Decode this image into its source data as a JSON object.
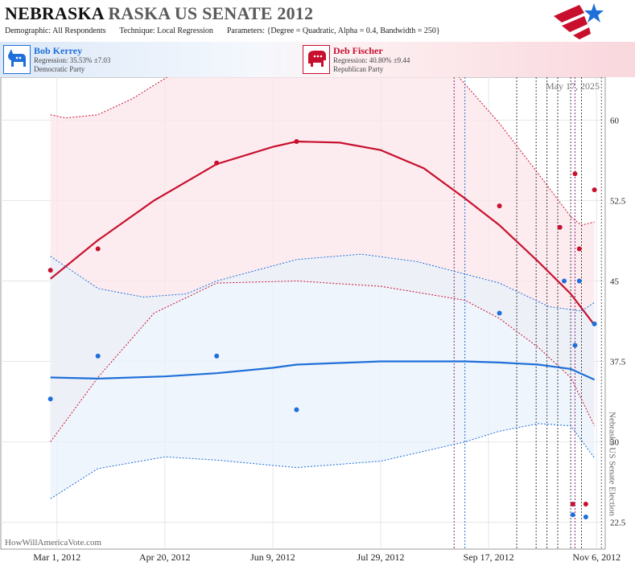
{
  "header": {
    "title_state": "NEBRASKA",
    "title_race": "RASKA US SENATE 2012",
    "demographic_label": "Demographic:",
    "demographic_value": "All Respondents",
    "technique_label": "Technique:",
    "technique_value": "Local Regression",
    "parameters_label": "Parameters:",
    "parameters_value": "{Degree = Quadratic, Alpha = 0.4, Bandwidth = 250}"
  },
  "candidates": [
    {
      "name": "Bob Kerrey",
      "regression": "Regression: 35.53% ±7.03",
      "party": "Democratic Party",
      "icon": "donkey-icon",
      "color": "#1e6fd9"
    },
    {
      "name": "Deb Fischer",
      "regression": "Regression: 40.80% ±9.44",
      "party": "Republican Party",
      "icon": "elephant-icon",
      "color": "#c8102e"
    }
  ],
  "chart_data": {
    "type": "scatter",
    "date_label": "May 17, 2025",
    "watermark": "HowWillAmericaVote.com",
    "election_label": "Nebraska US Senate Election",
    "x_range": [
      "2012-02-04",
      "2012-11-10"
    ],
    "ylim": [
      20,
      64
    ],
    "y_ticks": [
      22.5,
      30,
      37.5,
      45,
      52.5,
      60
    ],
    "y_tick_labels": [
      "22.5",
      "30",
      "37.5",
      "45",
      "52.5",
      "60"
    ],
    "x_ticks": [
      {
        "date": "2012-03-01",
        "label": "Mar 1, 2012"
      },
      {
        "date": "2012-04-20",
        "label": "Apr 20, 2012"
      },
      {
        "date": "2012-06-09",
        "label": "Jun 9, 2012"
      },
      {
        "date": "2012-07-29",
        "label": "Jul 29, 2012"
      },
      {
        "date": "2012-09-17",
        "label": "Sep 17, 2012"
      },
      {
        "date": "2012-11-06",
        "label": "Nov 6, 2012"
      }
    ],
    "election_date": "2012-11-06",
    "poll_lines": [
      {
        "date": "2012-09-01",
        "color": "#8a2a7a"
      },
      {
        "date": "2012-09-06",
        "color": "#2a6fd0"
      },
      {
        "date": "2012-09-30",
        "color": "#444444"
      },
      {
        "date": "2012-10-09",
        "color": "#444444"
      },
      {
        "date": "2012-10-14",
        "color": "#444444"
      },
      {
        "date": "2012-10-19",
        "color": "#444444"
      },
      {
        "date": "2012-10-25",
        "color": "#444444"
      },
      {
        "date": "2012-10-27",
        "color": "#8a2a7a"
      },
      {
        "date": "2012-10-30",
        "color": "#444444"
      }
    ],
    "series": [
      {
        "name": "Deb Fischer",
        "color": "#c8102e",
        "fill": "#fbe6ea",
        "points": [
          {
            "x": "2012-02-27",
            "y": 46
          },
          {
            "x": "2012-03-20",
            "y": 48
          },
          {
            "x": "2012-05-14",
            "y": 56
          },
          {
            "x": "2012-06-20",
            "y": 58
          },
          {
            "x": "2012-09-22",
            "y": 52
          },
          {
            "x": "2012-10-20",
            "y": 50
          },
          {
            "x": "2012-10-27",
            "y": 55
          },
          {
            "x": "2012-10-29",
            "y": 48
          },
          {
            "x": "2012-11-05",
            "y": 53.5
          },
          {
            "x": "2012-10-26",
            "y": 24.2
          },
          {
            "x": "2012-11-01",
            "y": 24.2
          }
        ],
        "regression": [
          {
            "x": "2012-02-27",
            "y": 45.2
          },
          {
            "x": "2012-03-20",
            "y": 48.8
          },
          {
            "x": "2012-04-15",
            "y": 52.5
          },
          {
            "x": "2012-05-14",
            "y": 55.9
          },
          {
            "x": "2012-06-09",
            "y": 57.5
          },
          {
            "x": "2012-06-20",
            "y": 58
          },
          {
            "x": "2012-07-10",
            "y": 57.9
          },
          {
            "x": "2012-07-29",
            "y": 57.2
          },
          {
            "x": "2012-08-18",
            "y": 55.5
          },
          {
            "x": "2012-09-06",
            "y": 52.7
          },
          {
            "x": "2012-09-22",
            "y": 50.2
          },
          {
            "x": "2012-10-10",
            "y": 46.8
          },
          {
            "x": "2012-10-25",
            "y": 43.8
          },
          {
            "x": "2012-11-05",
            "y": 40.9
          }
        ],
        "upper": [
          {
            "x": "2012-02-27",
            "y": 60.5
          },
          {
            "x": "2012-03-05",
            "y": 60.2
          },
          {
            "x": "2012-03-20",
            "y": 60.5
          },
          {
            "x": "2012-04-05",
            "y": 62
          },
          {
            "x": "2012-04-25",
            "y": 64.5
          },
          {
            "x": "2012-09-01",
            "y": 64.5
          },
          {
            "x": "2012-09-22",
            "y": 59.7
          },
          {
            "x": "2012-10-10",
            "y": 55
          },
          {
            "x": "2012-10-25",
            "y": 51
          },
          {
            "x": "2012-10-30",
            "y": 50.2
          },
          {
            "x": "2012-11-05",
            "y": 50.5
          }
        ],
        "lower": [
          {
            "x": "2012-02-27",
            "y": 30
          },
          {
            "x": "2012-03-20",
            "y": 36
          },
          {
            "x": "2012-04-15",
            "y": 42
          },
          {
            "x": "2012-05-14",
            "y": 44.8
          },
          {
            "x": "2012-06-20",
            "y": 45
          },
          {
            "x": "2012-07-29",
            "y": 44.5
          },
          {
            "x": "2012-09-06",
            "y": 43.2
          },
          {
            "x": "2012-09-22",
            "y": 41.5
          },
          {
            "x": "2012-10-10",
            "y": 38.8
          },
          {
            "x": "2012-10-25",
            "y": 36
          },
          {
            "x": "2012-11-05",
            "y": 31.5
          }
        ]
      },
      {
        "name": "Bob Kerrey",
        "color": "#1e6fd9",
        "fill": "#eaf1fb",
        "points": [
          {
            "x": "2012-02-27",
            "y": 34
          },
          {
            "x": "2012-03-20",
            "y": 38
          },
          {
            "x": "2012-05-14",
            "y": 38
          },
          {
            "x": "2012-06-20",
            "y": 33
          },
          {
            "x": "2012-09-22",
            "y": 42
          },
          {
            "x": "2012-10-22",
            "y": 45
          },
          {
            "x": "2012-10-27",
            "y": 39
          },
          {
            "x": "2012-10-29",
            "y": 45
          },
          {
            "x": "2012-11-05",
            "y": 41
          },
          {
            "x": "2012-10-26",
            "y": 23.2
          },
          {
            "x": "2012-11-01",
            "y": 23
          }
        ],
        "regression": [
          {
            "x": "2012-02-27",
            "y": 36
          },
          {
            "x": "2012-03-20",
            "y": 35.9
          },
          {
            "x": "2012-04-20",
            "y": 36.1
          },
          {
            "x": "2012-05-14",
            "y": 36.4
          },
          {
            "x": "2012-06-09",
            "y": 36.9
          },
          {
            "x": "2012-06-20",
            "y": 37.2
          },
          {
            "x": "2012-07-29",
            "y": 37.5
          },
          {
            "x": "2012-09-06",
            "y": 37.5
          },
          {
            "x": "2012-09-22",
            "y": 37.4
          },
          {
            "x": "2012-10-10",
            "y": 37.2
          },
          {
            "x": "2012-10-25",
            "y": 36.8
          },
          {
            "x": "2012-11-05",
            "y": 35.8
          }
        ],
        "upper": [
          {
            "x": "2012-02-27",
            "y": 47.3
          },
          {
            "x": "2012-03-20",
            "y": 44.3
          },
          {
            "x": "2012-04-10",
            "y": 43.5
          },
          {
            "x": "2012-04-30",
            "y": 43.8
          },
          {
            "x": "2012-05-14",
            "y": 45
          },
          {
            "x": "2012-06-20",
            "y": 47
          },
          {
            "x": "2012-07-20",
            "y": 47.5
          },
          {
            "x": "2012-08-15",
            "y": 46.8
          },
          {
            "x": "2012-09-22",
            "y": 44.8
          },
          {
            "x": "2012-10-15",
            "y": 42.6
          },
          {
            "x": "2012-10-30",
            "y": 42.2
          },
          {
            "x": "2012-11-05",
            "y": 43
          }
        ],
        "lower": [
          {
            "x": "2012-02-27",
            "y": 24.7
          },
          {
            "x": "2012-03-20",
            "y": 27.5
          },
          {
            "x": "2012-04-20",
            "y": 28.6
          },
          {
            "x": "2012-05-14",
            "y": 28.3
          },
          {
            "x": "2012-06-20",
            "y": 27.6
          },
          {
            "x": "2012-07-29",
            "y": 28.2
          },
          {
            "x": "2012-09-06",
            "y": 30
          },
          {
            "x": "2012-09-22",
            "y": 31
          },
          {
            "x": "2012-10-10",
            "y": 31.7
          },
          {
            "x": "2012-10-25",
            "y": 31.5
          },
          {
            "x": "2012-11-05",
            "y": 28.5
          }
        ]
      }
    ]
  }
}
